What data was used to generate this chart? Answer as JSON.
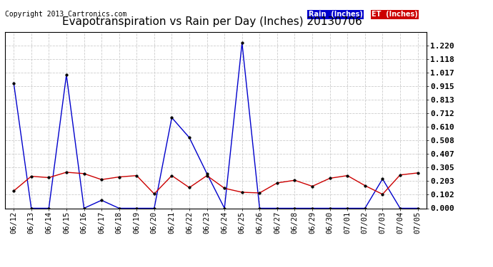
{
  "title": "Evapotranspiration vs Rain per Day (Inches) 20130706",
  "copyright": "Copyright 2013 Cartronics.com",
  "dates": [
    "06/12",
    "06/13",
    "06/14",
    "06/15",
    "06/16",
    "06/17",
    "06/18",
    "06/19",
    "06/20",
    "06/21",
    "06/22",
    "06/23",
    "06/24",
    "06/25",
    "06/26",
    "06/27",
    "06/28",
    "06/29",
    "06/30",
    "07/01",
    "07/02",
    "07/03",
    "07/04",
    "07/05"
  ],
  "rain": [
    0.94,
    0.0,
    0.0,
    1.0,
    0.0,
    0.06,
    0.0,
    0.0,
    0.0,
    0.68,
    0.53,
    0.26,
    0.0,
    1.24,
    0.0,
    0.0,
    0.0,
    0.0,
    0.0,
    0.0,
    0.0,
    0.22,
    0.0,
    0.0
  ],
  "et": [
    0.13,
    0.24,
    0.23,
    0.27,
    0.26,
    0.215,
    0.235,
    0.245,
    0.108,
    0.245,
    0.155,
    0.245,
    0.15,
    0.12,
    0.115,
    0.19,
    0.21,
    0.165,
    0.225,
    0.245,
    0.17,
    0.105,
    0.25,
    0.265
  ],
  "rain_color": "#0000cc",
  "et_color": "#cc0000",
  "marker_color": "#000000",
  "bg_color": "#ffffff",
  "plot_bg_color": "#ffffff",
  "grid_color": "#cccccc",
  "title_color": "#000000",
  "copyright_color": "#000000",
  "legend_rain_bg": "#0000cc",
  "legend_et_bg": "#cc0000",
  "legend_rain_text": "Rain  (Inches)",
  "legend_et_text": "ET  (Inches)",
  "ylim": [
    0.0,
    1.322
  ],
  "yticks": [
    0.0,
    0.102,
    0.203,
    0.305,
    0.407,
    0.508,
    0.61,
    0.712,
    0.813,
    0.915,
    1.017,
    1.118,
    1.22
  ],
  "title_fontsize": 11,
  "copyright_fontsize": 7,
  "tick_fontsize": 7.5,
  "ytick_fontsize": 8
}
